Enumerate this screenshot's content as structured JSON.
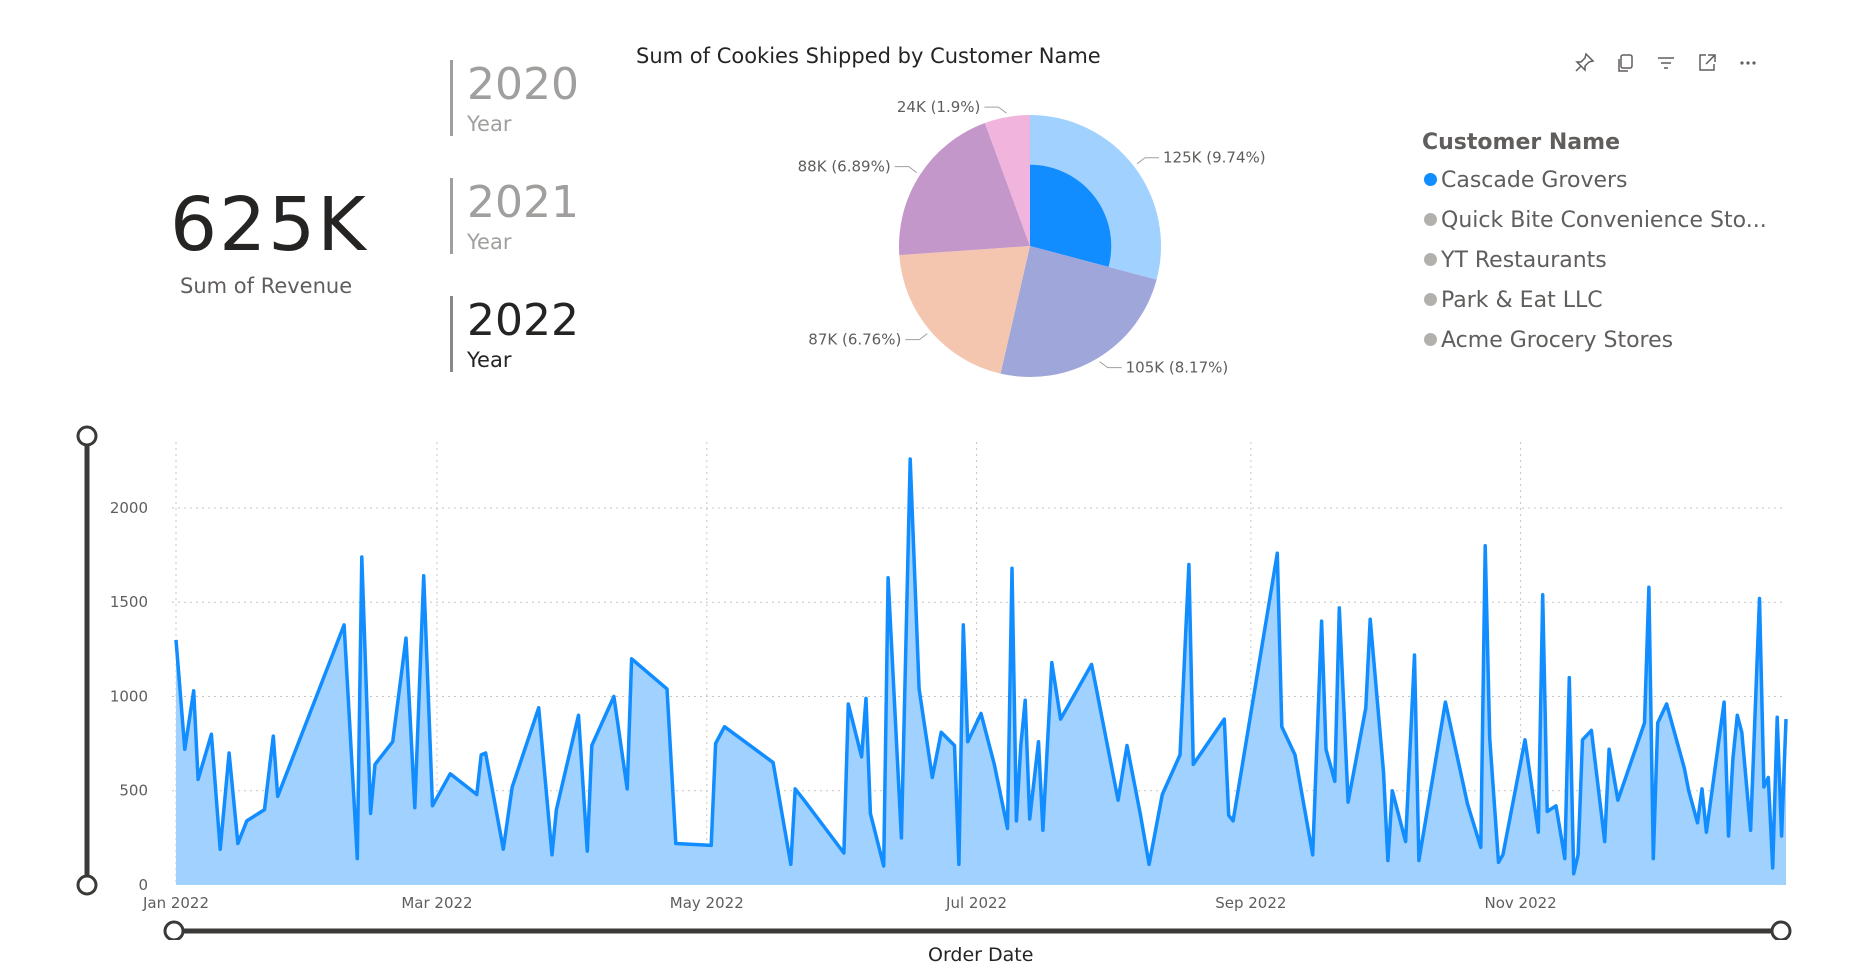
{
  "kpi": {
    "value": "625K",
    "label": "Sum of Revenue"
  },
  "year_slicer": {
    "items": [
      {
        "year": "2020",
        "label": "Year",
        "selected": false
      },
      {
        "year": "2021",
        "label": "Year",
        "selected": false
      },
      {
        "year": "2022",
        "label": "Year",
        "selected": true
      }
    ]
  },
  "toolbar": {
    "icons": [
      "pin-icon",
      "copy-icon",
      "filter-icon",
      "focus-mode-icon",
      "more-options-icon"
    ]
  },
  "pie": {
    "title": "Sum of Cookies Shipped by Customer Name",
    "chart_data": {
      "type": "pie",
      "title": "Sum of Cookies Shipped by Customer Name",
      "slices": [
        {
          "label": "125K (9.74%)",
          "value": 125,
          "color": "#a0d1ff"
        },
        {
          "label": "105K (8.17%)",
          "value": 105,
          "color": "#9fa6da"
        },
        {
          "label": "87K (6.76%)",
          "value": 87,
          "color": "#f4c6b0"
        },
        {
          "label": "88K (6.89%)",
          "value": 88,
          "color": "#c397c9"
        },
        {
          "label": "24K (1.9%)",
          "value": 24,
          "color": "#f1b5dd"
        }
      ],
      "highlight": {
        "slice": 0,
        "fraction": 0.62,
        "color": "#118dff"
      }
    }
  },
  "legend": {
    "title": "Customer Name",
    "items": [
      {
        "label": "Cascade Grovers",
        "color": "#118dff"
      },
      {
        "label": "Quick Bite Convenience Sto...",
        "color": "#b3b0ad"
      },
      {
        "label": "YT Restaurants",
        "color": "#b3b0ad"
      },
      {
        "label": "Park & Eat LLC",
        "color": "#b3b0ad"
      },
      {
        "label": "Acme Grocery Stores",
        "color": "#b3b0ad"
      }
    ]
  },
  "line_chart": {
    "x_title": "Order Date",
    "chart_data": {
      "type": "area",
      "xlabel": "Order Date",
      "ylabel": "",
      "ylim": [
        0,
        2350
      ],
      "yticks": [
        0,
        500,
        1000,
        1500,
        2000
      ],
      "xticks": [
        "Jan 2022",
        "Mar 2022",
        "May 2022",
        "Jul 2022",
        "Sep 2022",
        "Nov 2022"
      ],
      "x_range": [
        "2022-01-01",
        "2022-12-31"
      ],
      "line_color": "#118dff",
      "fill_color": "#a0d1ff",
      "grid": true,
      "points": [
        [
          "2022-01-01",
          1300
        ],
        [
          "2022-01-03",
          720
        ],
        [
          "2022-01-05",
          1030
        ],
        [
          "2022-01-06",
          560
        ],
        [
          "2022-01-09",
          800
        ],
        [
          "2022-01-11",
          190
        ],
        [
          "2022-01-13",
          700
        ],
        [
          "2022-01-15",
          220
        ],
        [
          "2022-01-17",
          340
        ],
        [
          "2022-01-21",
          400
        ],
        [
          "2022-01-23",
          790
        ],
        [
          "2022-01-24",
          470
        ],
        [
          "2022-02-08",
          1380
        ],
        [
          "2022-02-11",
          140
        ],
        [
          "2022-02-12",
          1740
        ],
        [
          "2022-02-14",
          380
        ],
        [
          "2022-02-15",
          640
        ],
        [
          "2022-02-19",
          760
        ],
        [
          "2022-02-22",
          1310
        ],
        [
          "2022-02-24",
          410
        ],
        [
          "2022-02-26",
          1640
        ],
        [
          "2022-02-28",
          420
        ],
        [
          "2022-03-04",
          590
        ],
        [
          "2022-03-10",
          480
        ],
        [
          "2022-03-11",
          690
        ],
        [
          "2022-03-12",
          700
        ],
        [
          "2022-03-16",
          190
        ],
        [
          "2022-03-18",
          520
        ],
        [
          "2022-03-24",
          940
        ],
        [
          "2022-03-27",
          160
        ],
        [
          "2022-03-28",
          400
        ],
        [
          "2022-04-02",
          900
        ],
        [
          "2022-04-04",
          180
        ],
        [
          "2022-04-05",
          740
        ],
        [
          "2022-04-10",
          1000
        ],
        [
          "2022-04-13",
          510
        ],
        [
          "2022-04-14",
          1200
        ],
        [
          "2022-04-22",
          1040
        ],
        [
          "2022-04-24",
          220
        ],
        [
          "2022-05-02",
          210
        ],
        [
          "2022-05-03",
          750
        ],
        [
          "2022-05-05",
          840
        ],
        [
          "2022-05-16",
          650
        ],
        [
          "2022-05-20",
          110
        ],
        [
          "2022-05-21",
          510
        ],
        [
          "2022-05-23",
          450
        ],
        [
          "2022-06-01",
          170
        ],
        [
          "2022-06-02",
          960
        ],
        [
          "2022-06-05",
          680
        ],
        [
          "2022-06-06",
          990
        ],
        [
          "2022-06-07",
          380
        ],
        [
          "2022-06-10",
          100
        ],
        [
          "2022-06-11",
          1630
        ],
        [
          "2022-06-14",
          250
        ],
        [
          "2022-06-16",
          2260
        ],
        [
          "2022-06-18",
          1040
        ],
        [
          "2022-06-21",
          570
        ],
        [
          "2022-06-23",
          810
        ],
        [
          "2022-06-26",
          740
        ],
        [
          "2022-06-27",
          110
        ],
        [
          "2022-06-28",
          1380
        ],
        [
          "2022-06-29",
          760
        ],
        [
          "2022-07-02",
          910
        ],
        [
          "2022-07-05",
          640
        ],
        [
          "2022-07-08",
          300
        ],
        [
          "2022-07-09",
          1680
        ],
        [
          "2022-07-10",
          340
        ],
        [
          "2022-07-11",
          740
        ],
        [
          "2022-07-12",
          980
        ],
        [
          "2022-07-13",
          350
        ],
        [
          "2022-07-15",
          760
        ],
        [
          "2022-07-16",
          290
        ],
        [
          "2022-07-18",
          1180
        ],
        [
          "2022-07-20",
          880
        ],
        [
          "2022-07-27",
          1170
        ],
        [
          "2022-08-02",
          450
        ],
        [
          "2022-08-04",
          740
        ],
        [
          "2022-08-07",
          380
        ],
        [
          "2022-08-09",
          110
        ],
        [
          "2022-08-12",
          480
        ],
        [
          "2022-08-16",
          690
        ],
        [
          "2022-08-18",
          1700
        ],
        [
          "2022-08-19",
          640
        ],
        [
          "2022-08-26",
          880
        ],
        [
          "2022-08-27",
          370
        ],
        [
          "2022-08-28",
          340
        ],
        [
          "2022-09-07",
          1760
        ],
        [
          "2022-09-08",
          840
        ],
        [
          "2022-09-11",
          690
        ],
        [
          "2022-09-15",
          160
        ],
        [
          "2022-09-17",
          1400
        ],
        [
          "2022-09-18",
          720
        ],
        [
          "2022-09-20",
          550
        ],
        [
          "2022-09-21",
          1470
        ],
        [
          "2022-09-23",
          440
        ],
        [
          "2022-09-27",
          940
        ],
        [
          "2022-09-28",
          1410
        ],
        [
          "2022-10-01",
          600
        ],
        [
          "2022-10-02",
          130
        ],
        [
          "2022-10-03",
          500
        ],
        [
          "2022-10-06",
          230
        ],
        [
          "2022-10-08",
          1220
        ],
        [
          "2022-10-09",
          130
        ],
        [
          "2022-10-15",
          970
        ],
        [
          "2022-10-20",
          430
        ],
        [
          "2022-10-23",
          200
        ],
        [
          "2022-10-24",
          1800
        ],
        [
          "2022-10-25",
          780
        ],
        [
          "2022-10-27",
          120
        ],
        [
          "2022-10-28",
          160
        ],
        [
          "2022-11-02",
          770
        ],
        [
          "2022-11-05",
          280
        ],
        [
          "2022-11-06",
          1540
        ],
        [
          "2022-11-07",
          390
        ],
        [
          "2022-11-09",
          420
        ],
        [
          "2022-11-11",
          140
        ],
        [
          "2022-11-12",
          1100
        ],
        [
          "2022-11-13",
          60
        ],
        [
          "2022-11-14",
          160
        ],
        [
          "2022-11-15",
          770
        ],
        [
          "2022-11-17",
          820
        ],
        [
          "2022-11-20",
          230
        ],
        [
          "2022-11-21",
          720
        ],
        [
          "2022-11-23",
          450
        ],
        [
          "2022-11-29",
          860
        ],
        [
          "2022-11-30",
          1580
        ],
        [
          "2022-12-01",
          140
        ],
        [
          "2022-12-02",
          860
        ],
        [
          "2022-12-04",
          960
        ],
        [
          "2022-12-08",
          620
        ],
        [
          "2022-12-09",
          500
        ],
        [
          "2022-12-11",
          330
        ],
        [
          "2022-12-12",
          510
        ],
        [
          "2022-12-13",
          280
        ],
        [
          "2022-12-17",
          970
        ],
        [
          "2022-12-18",
          260
        ],
        [
          "2022-12-19",
          670
        ],
        [
          "2022-12-20",
          900
        ],
        [
          "2022-12-21",
          810
        ],
        [
          "2022-12-23",
          290
        ],
        [
          "2022-12-25",
          1520
        ],
        [
          "2022-12-26",
          520
        ],
        [
          "2022-12-27",
          570
        ],
        [
          "2022-12-28",
          90
        ],
        [
          "2022-12-29",
          890
        ],
        [
          "2022-12-30",
          260
        ],
        [
          "2022-12-31",
          880
        ]
      ]
    }
  }
}
